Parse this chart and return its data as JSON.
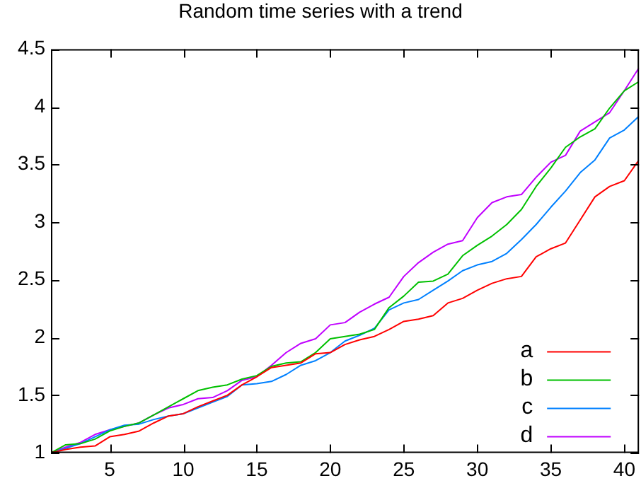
{
  "chart_data": {
    "type": "line",
    "title": "Random time series with a trend",
    "x": [
      1,
      2,
      3,
      4,
      5,
      6,
      7,
      8,
      9,
      10,
      11,
      12,
      13,
      14,
      15,
      16,
      17,
      18,
      19,
      20,
      21,
      22,
      23,
      24,
      25,
      26,
      27,
      28,
      29,
      30,
      31,
      32,
      33,
      34,
      35,
      36,
      37,
      38,
      39,
      40,
      41
    ],
    "xlim": [
      1,
      41
    ],
    "xticks": [
      5,
      10,
      15,
      20,
      25,
      30,
      35,
      40
    ],
    "ylim": [
      1,
      4.5
    ],
    "yticks": [
      1,
      1.5,
      2,
      2.5,
      3,
      3.5,
      4,
      4.5
    ],
    "grid": false,
    "legend": "bottom right",
    "marker": "none",
    "line_style": "solid",
    "series": [
      {
        "name": "a",
        "color": "#ff0000",
        "values": [
          1.0,
          1.03,
          1.05,
          1.06,
          1.14,
          1.16,
          1.19,
          1.26,
          1.32,
          1.34,
          1.4,
          1.45,
          1.5,
          1.59,
          1.66,
          1.74,
          1.76,
          1.78,
          1.86,
          1.87,
          1.94,
          1.98,
          2.01,
          2.07,
          2.14,
          2.16,
          2.19,
          2.3,
          2.34,
          2.41,
          2.47,
          2.51,
          2.53,
          2.7,
          2.77,
          2.82,
          3.02,
          3.22,
          3.31,
          3.36,
          3.54
        ]
      },
      {
        "name": "b",
        "color": "#00c000",
        "values": [
          1.0,
          1.07,
          1.08,
          1.12,
          1.19,
          1.23,
          1.26,
          1.33,
          1.4,
          1.47,
          1.54,
          1.57,
          1.59,
          1.64,
          1.67,
          1.75,
          1.78,
          1.79,
          1.87,
          1.99,
          2.01,
          2.03,
          2.07,
          2.26,
          2.36,
          2.48,
          2.49,
          2.55,
          2.71,
          2.8,
          2.88,
          2.98,
          3.11,
          3.31,
          3.47,
          3.65,
          3.74,
          3.81,
          3.99,
          4.14,
          4.22
        ]
      },
      {
        "name": "c",
        "color": "#0080ff",
        "values": [
          1.0,
          1.04,
          1.08,
          1.14,
          1.2,
          1.24,
          1.25,
          1.29,
          1.32,
          1.34,
          1.39,
          1.44,
          1.49,
          1.59,
          1.6,
          1.62,
          1.68,
          1.76,
          1.8,
          1.87,
          1.97,
          2.02,
          2.08,
          2.24,
          2.3,
          2.33,
          2.41,
          2.49,
          2.58,
          2.63,
          2.66,
          2.73,
          2.85,
          2.98,
          3.13,
          3.27,
          3.43,
          3.54,
          3.73,
          3.8,
          3.92
        ]
      },
      {
        "name": "d",
        "color": "#c000ff",
        "values": [
          1.0,
          1.05,
          1.09,
          1.16,
          1.2,
          1.23,
          1.26,
          1.33,
          1.39,
          1.42,
          1.47,
          1.48,
          1.54,
          1.63,
          1.66,
          1.76,
          1.87,
          1.95,
          1.99,
          2.11,
          2.13,
          2.22,
          2.29,
          2.35,
          2.53,
          2.65,
          2.74,
          2.81,
          2.84,
          3.04,
          3.17,
          3.22,
          3.24,
          3.39,
          3.52,
          3.58,
          3.79,
          3.87,
          3.95,
          4.14,
          4.34
        ]
      }
    ]
  }
}
